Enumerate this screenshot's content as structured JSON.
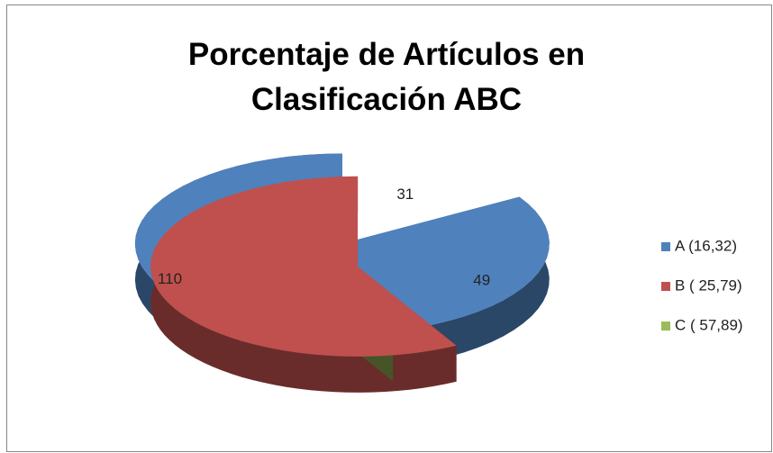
{
  "chart_data": {
    "type": "pie",
    "title": "Porcentaje de Artículos en Clasificación ABC",
    "categories": [
      "A (16,32)",
      "B ( 25,79)",
      "C ( 57,89)"
    ],
    "values": [
      31,
      49,
      110
    ],
    "colors": [
      "#4f81bd",
      "#c0504d",
      "#9bbb59"
    ],
    "legend": "right"
  }
}
